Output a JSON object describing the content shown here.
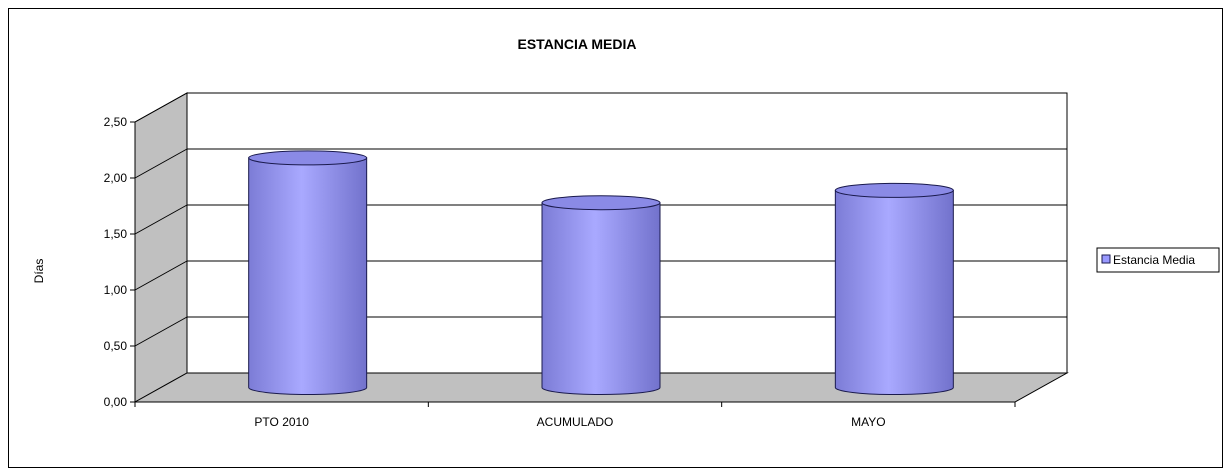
{
  "chart_data": {
    "type": "bar",
    "title": "ESTANCIA MEDIA",
    "xlabel": "",
    "ylabel": "Días",
    "categories": [
      "PTO 2010",
      "ACUMULADO",
      "MAYO"
    ],
    "series": [
      {
        "name": "Estancia Media",
        "values": [
          2.05,
          1.65,
          1.76
        ]
      }
    ],
    "ylim": [
      0,
      2.5
    ],
    "yticks": [
      "0,00",
      "0,50",
      "1,00",
      "1,50",
      "2,00",
      "2,50"
    ],
    "grid": true,
    "legend_position": "right",
    "style_3d": "cylinder"
  },
  "colors": {
    "bar_fill": "#9999ff",
    "bar_edge": "#1a1a4d",
    "wall": "#c0c0c0",
    "floor": "#c0c0c0",
    "back_wall": "#ffffff"
  }
}
